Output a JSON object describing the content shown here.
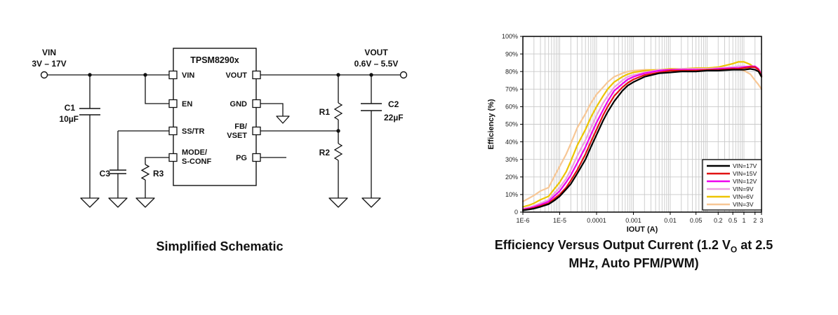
{
  "schematic": {
    "input_label": "VIN",
    "input_range": "3V – 17V",
    "output_label": "VOUT",
    "output_range": "0.6V – 5.5V",
    "ic_title": "TPSM8290x",
    "pins": {
      "vin": "VIN",
      "en": "EN",
      "sstr": "SS/TR",
      "mode1": "MODE/",
      "mode2": "S-CONF",
      "vout": "VOUT",
      "gnd": "GND",
      "fb1": "FB/",
      "fb2": "VSET",
      "pg": "PG"
    },
    "components": {
      "c1_name": "C1",
      "c1_value": "10µF",
      "c2_name": "C2",
      "c2_value": "22µF",
      "c3_name": "C3",
      "r1_name": "R1",
      "r2_name": "R2",
      "r3_name": "R3"
    }
  },
  "captions": {
    "schematic": "Simplified Schematic",
    "chart_line1_pre": "Efficiency Versus Output Current (1.2 V",
    "chart_line1_sub": "O",
    "chart_line1_post": " at 2.5",
    "chart_line2": "MHz, Auto PFM/PWM)"
  },
  "chart_data": {
    "type": "line",
    "title": "Efficiency Versus Output Current (1.2 VO at 2.5 MHz, Auto PFM/PWM)",
    "xlabel": "IOUT (A)",
    "ylabel": "Efficiency (%)",
    "x_scale": "log",
    "xlim": [
      1e-06,
      3
    ],
    "ylim": [
      0,
      100
    ],
    "grid": true,
    "legend_position": "lower right",
    "y_ticks": [
      {
        "label": "0",
        "value": 0
      },
      {
        "label": "10%",
        "value": 10
      },
      {
        "label": "20%",
        "value": 20
      },
      {
        "label": "30%",
        "value": 30
      },
      {
        "label": "40%",
        "value": 40
      },
      {
        "label": "50%",
        "value": 50
      },
      {
        "label": "60%",
        "value": 60
      },
      {
        "label": "70%",
        "value": 70
      },
      {
        "label": "80%",
        "value": 80
      },
      {
        "label": "90%",
        "value": 90
      },
      {
        "label": "100%",
        "value": 100
      }
    ],
    "x_ticks": [
      {
        "label": "1E-6",
        "value": 1e-06
      },
      {
        "label": "1E-5",
        "value": 1e-05
      },
      {
        "label": "0.0001",
        "value": 0.0001
      },
      {
        "label": "0.001",
        "value": 0.001
      },
      {
        "label": "0.01",
        "value": 0.01
      },
      {
        "label": "0.05",
        "value": 0.05
      },
      {
        "label": "0.2",
        "value": 0.2
      },
      {
        "label": "0.5",
        "value": 0.5
      },
      {
        "label": "1",
        "value": 1
      },
      {
        "label": "2",
        "value": 2
      },
      {
        "label": "3",
        "value": 3
      }
    ],
    "x": [
      1e-06,
      1.5e-06,
      2e-06,
      3e-06,
      5e-06,
      7e-06,
      1e-05,
      1.5e-05,
      2e-05,
      3e-05,
      5e-05,
      7e-05,
      0.0001,
      0.00015,
      0.0002,
      0.0003,
      0.0005,
      0.0007,
      0.001,
      0.002,
      0.005,
      0.01,
      0.02,
      0.05,
      0.1,
      0.2,
      0.5,
      0.7,
      1,
      1.5,
      2,
      2.5,
      3
    ],
    "series": [
      {
        "name": "VIN=17V",
        "color": "#000000",
        "values": [
          1,
          1.5,
          2,
          3,
          4.5,
          6.5,
          9,
          13,
          16,
          22,
          30,
          37,
          44,
          52,
          57,
          63,
          69,
          72,
          74,
          77,
          79,
          79.5,
          80,
          80,
          80.5,
          80.5,
          81,
          81,
          81,
          81.5,
          81,
          80,
          77
        ]
      },
      {
        "name": "VIN=15V",
        "color": "#e01212",
        "values": [
          1.2,
          1.8,
          2.4,
          3.5,
          5,
          7.5,
          10,
          14,
          18,
          24,
          33,
          40,
          47,
          55,
          60,
          66,
          71,
          73.5,
          75.5,
          78,
          79.5,
          80.5,
          80.5,
          80.5,
          81,
          81,
          81.5,
          81.5,
          82,
          82.5,
          82.5,
          81,
          77.5
        ]
      },
      {
        "name": "VIN=12V",
        "color": "#ee00ee",
        "values": [
          1.5,
          2.2,
          3,
          4.2,
          6,
          9,
          12,
          17,
          21,
          28,
          37,
          44,
          51,
          58,
          63,
          69,
          73,
          75.5,
          77,
          79,
          80.5,
          81,
          81,
          81,
          81,
          81.5,
          82,
          82,
          82.5,
          83,
          83,
          81.5,
          78
        ]
      },
      {
        "name": "VIN=9V",
        "color": "#eda0e0",
        "values": [
          2,
          2.8,
          3.6,
          5,
          7,
          10.5,
          14,
          19,
          24,
          32,
          41,
          48,
          55,
          62,
          66,
          71,
          75,
          77,
          78,
          79.5,
          81,
          81,
          81.5,
          81.5,
          81.5,
          82,
          82.5,
          83,
          83,
          82.5,
          82,
          80.5,
          78
        ]
      },
      {
        "name": "VIN=6V",
        "color": "#edc400",
        "values": [
          3,
          4,
          5,
          7,
          9,
          13,
          17,
          23,
          29,
          38,
          47,
          54,
          60,
          66,
          70,
          74,
          77,
          78.5,
          79.5,
          80.5,
          81,
          81.5,
          81.5,
          82,
          82,
          82.5,
          84.5,
          85.5,
          85.5,
          84,
          82,
          80,
          77
        ]
      },
      {
        "name": "VIN=3V",
        "color": "#f7c795",
        "values": [
          6,
          8,
          9.5,
          12,
          14,
          20,
          26,
          33,
          39,
          48,
          56,
          62,
          67,
          71,
          74,
          77,
          79,
          80,
          80.5,
          81,
          81,
          81,
          81,
          81,
          81,
          81.5,
          82,
          81.5,
          80.5,
          78.5,
          75,
          72.5,
          70
        ]
      }
    ]
  }
}
